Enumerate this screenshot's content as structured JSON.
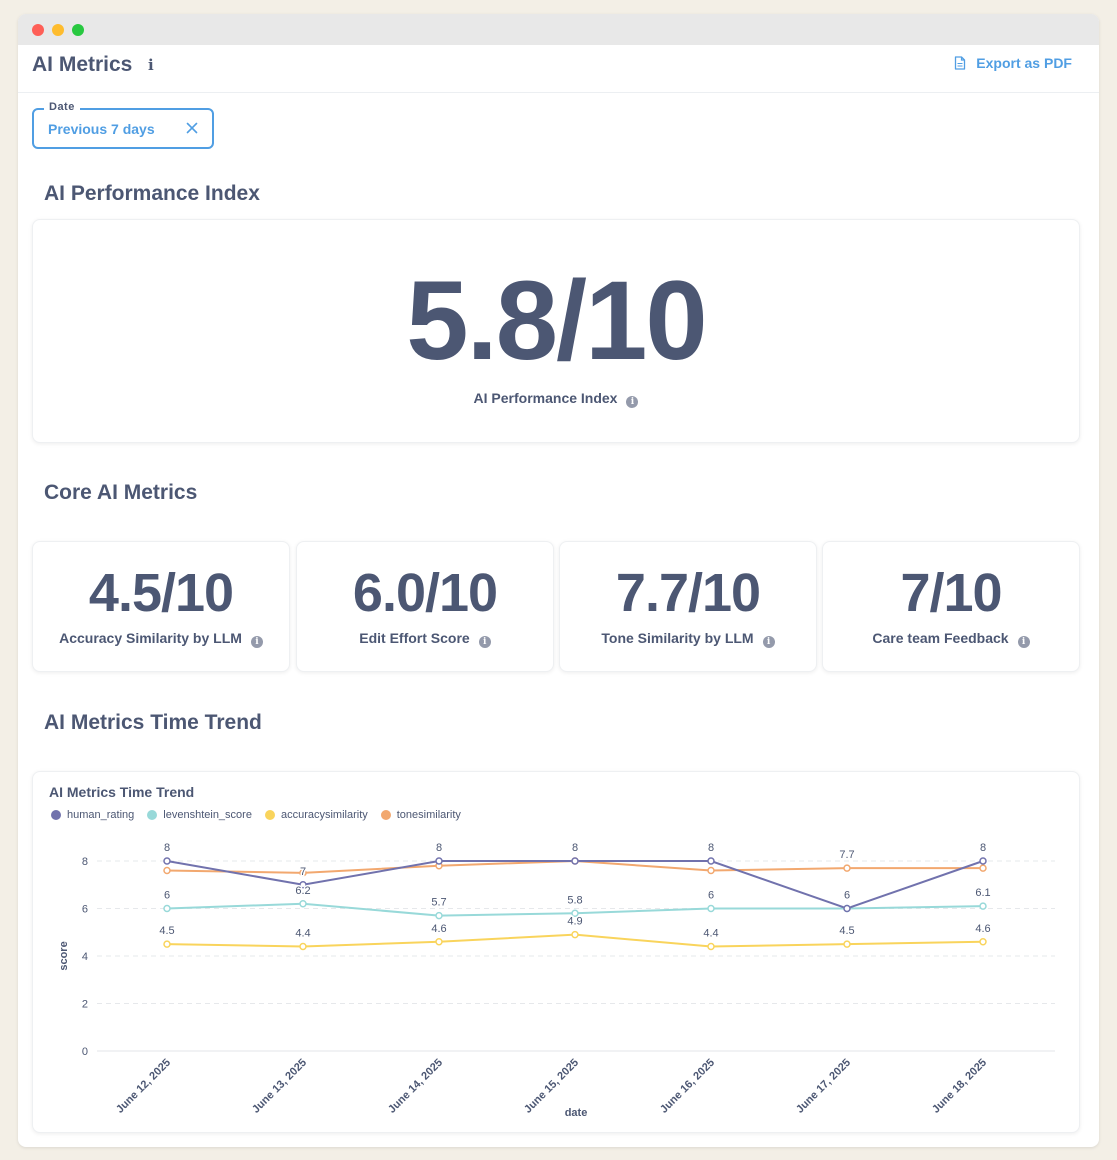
{
  "header": {
    "title": "AI Metrics",
    "info_glyph": "i",
    "export_label": "Export as PDF"
  },
  "filter": {
    "label": "Date",
    "value": "Previous 7 days"
  },
  "sections": {
    "performance": "AI Performance Index",
    "core": "Core AI Metrics",
    "trend": "AI Metrics Time Trend"
  },
  "performance_card": {
    "value": "5.8/10",
    "label": "AI Performance Index"
  },
  "metrics": [
    {
      "value": "4.5/10",
      "label": "Accuracy Similarity by LLM"
    },
    {
      "value": "6.0/10",
      "label": "Edit Effort Score"
    },
    {
      "value": "7.7/10",
      "label": "Tone Similarity by LLM"
    },
    {
      "value": "7/10",
      "label": "Care team Feedback"
    }
  ],
  "chart_data": {
    "type": "line",
    "title": "AI Metrics Time Trend",
    "xlabel": "date",
    "ylabel": "score",
    "ylim": [
      0,
      8
    ],
    "yticks": [
      "0",
      "2",
      "4",
      "6",
      "8"
    ],
    "grid": true,
    "legend_position": "top-left",
    "categories": [
      "June 12, 2025",
      "June 13, 2025",
      "June 14, 2025",
      "June 15, 2025",
      "June 16, 2025",
      "June 17, 2025",
      "June 18, 2025"
    ],
    "series": [
      {
        "name": "human_rating",
        "color": "#7172ad",
        "values": [
          8,
          7,
          8,
          8,
          8,
          6,
          8
        ],
        "labels": [
          "8",
          "7",
          "8",
          "8",
          "8",
          "6",
          "8"
        ]
      },
      {
        "name": "levenshtein_score",
        "color": "#98d9d9",
        "values": [
          6,
          6.2,
          5.7,
          5.8,
          6,
          6,
          6.1
        ],
        "labels": [
          "6",
          "6.2",
          "5.7",
          "5.8",
          "6",
          "6",
          "6.1"
        ]
      },
      {
        "name": "accuracysimilarity",
        "color": "#f9d45c",
        "values": [
          4.5,
          4.4,
          4.6,
          4.9,
          4.4,
          4.5,
          4.6
        ],
        "labels": [
          "4.5",
          "4.4",
          "4.6",
          "4.9",
          "4.4",
          "4.5",
          "4.6"
        ]
      },
      {
        "name": "tonesimilarity",
        "color": "#f2a86f",
        "values": [
          7.6,
          7.5,
          7.8,
          8,
          7.6,
          7.7,
          7.7
        ],
        "labels": [
          "",
          "",
          "",
          "",
          "",
          "7.7",
          ""
        ]
      }
    ]
  },
  "icons": {
    "export": "document-icon",
    "clear": "close-icon",
    "info": "info-icon"
  }
}
